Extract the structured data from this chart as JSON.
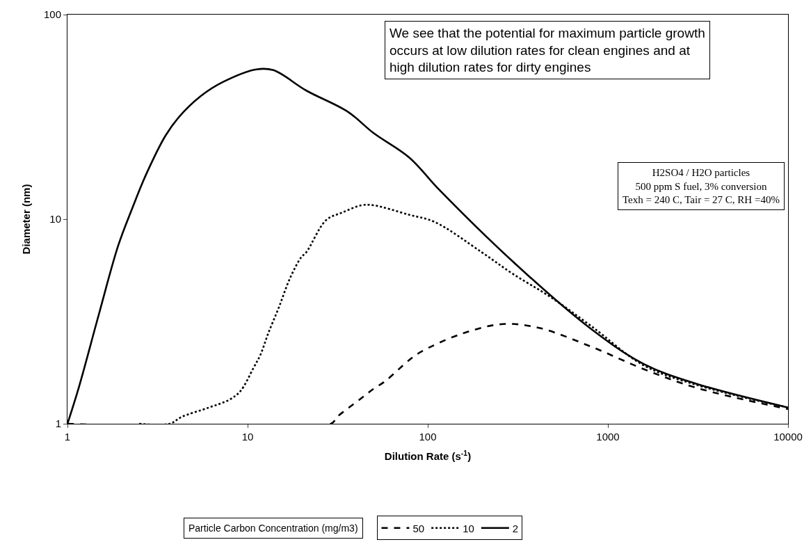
{
  "chart_data": {
    "type": "line",
    "xlabel": "Dilution Rate (s$^{-1}$)",
    "ylabel": "Diameter (nm)",
    "legend_title": "Particle Carbon Concentration (mg/m3)",
    "log": "xy",
    "xlim": [
      1,
      10000
    ],
    "ylim": [
      1,
      100
    ],
    "xticks": [
      1,
      10,
      100,
      1000,
      10000
    ],
    "yticks": [
      1,
      10,
      100
    ],
    "legend": "bottom",
    "marker": "none",
    "series": [
      {
        "name": "50",
        "color": "#000000",
        "line_style": "dashed",
        "x": [
          1,
          29,
          31.4,
          41.7,
          49.9,
          57.8,
          79,
          92,
          152,
          260,
          415,
          809,
          1580,
          3090,
          10000
        ],
        "values": [
          1,
          1,
          1.08,
          1.31,
          1.48,
          1.61,
          2.05,
          2.25,
          2.74,
          3.07,
          2.94,
          2.38,
          1.85,
          1.5,
          1.18
        ]
      },
      {
        "name": "10",
        "color": "#000000",
        "line_style": "dotted",
        "x": [
          2.5,
          3.7,
          4.3,
          6.1,
          7.9,
          9.1,
          10.8,
          11.8,
          13,
          14.9,
          17.2,
          19.8,
          21.2,
          27.3,
          33.7,
          43,
          49.9,
          79,
          109,
          199,
          297,
          473,
          809,
          1580,
          3090,
          10000
        ],
        "values": [
          1,
          1,
          1.08,
          1.2,
          1.31,
          1.44,
          1.88,
          2.18,
          2.76,
          3.7,
          5.15,
          6.5,
          6.9,
          9.9,
          10.8,
          11.7,
          11.7,
          10.5,
          9.7,
          6.9,
          5.4,
          4.2,
          3.0,
          1.93,
          1.55,
          1.2
        ]
      },
      {
        "name": "2",
        "color": "#000000",
        "line_style": "solid",
        "x": [
          1,
          1.16,
          1.49,
          1.91,
          2.28,
          2.72,
          3.5,
          4.16,
          5.5,
          7.35,
          11.2,
          13.9,
          21.2,
          36,
          49.9,
          79,
          116,
          297,
          809,
          1580,
          3090,
          10000
        ],
        "values": [
          1,
          1.52,
          3.4,
          7.4,
          11.2,
          16.4,
          25.6,
          31.6,
          40,
          47,
          54,
          53.5,
          42.5,
          33.5,
          26.4,
          20,
          13.9,
          6.2,
          2.9,
          1.96,
          1.57,
          1.2
        ]
      }
    ],
    "annotations": [
      "We see that the potential for maximum particle growth occurs at low dilution rates for clean engines and at high dilution rates for dirty engines",
      "H2SO4 / H2O particles\n500 ppm S fuel, 3% conversion\nTexh = 240 C, Tair = 27 C, RH =40%"
    ]
  }
}
